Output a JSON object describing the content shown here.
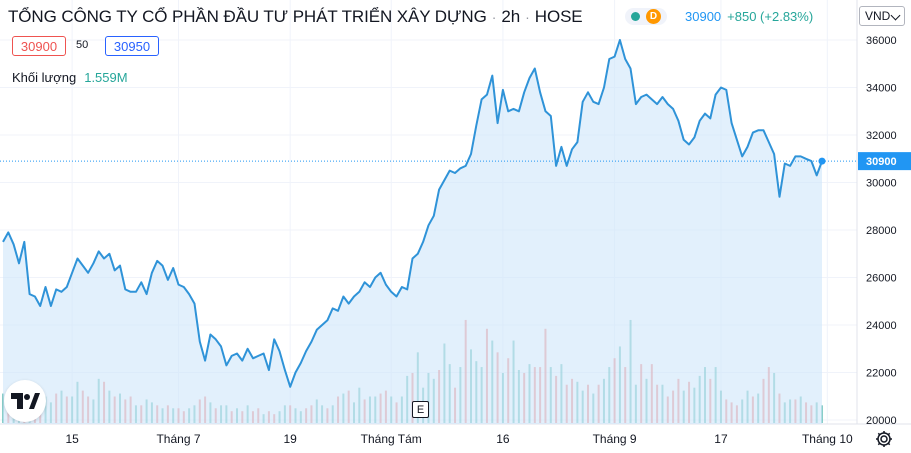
{
  "header": {
    "title": "TỔNG CÔNG TY CỔ PHẦN ĐẦU TƯ PHÁT TRIỂN XÂY DỰNG",
    "interval": "2h",
    "exchange": "HOSE",
    "separator": "·",
    "badge_letter": "D",
    "last_price": "30900",
    "change": "+850 (+2.83%)",
    "currency": "VND"
  },
  "quote_box": {
    "bid": "30900",
    "spread": "50",
    "ask": "30950"
  },
  "volume": {
    "label": "Khối lượng",
    "value": "1.559M"
  },
  "buttons": {
    "event_marker": "E"
  },
  "colors": {
    "line": "#2f93d8",
    "area": "#cfe6fa",
    "vol_up": "#26a69a",
    "vol_down": "#ef5350",
    "last_price_label": "#2196f3"
  },
  "icons": {
    "logo": "tradingview-logo",
    "settings": "gear-icon"
  },
  "chart_data": {
    "type": "area",
    "title": "",
    "xlabel": "",
    "ylabel": "",
    "ylim": [
      20000,
      36500
    ],
    "last_value": 30900,
    "last_value_label": "30900",
    "y_ticks": [
      20000,
      22000,
      24000,
      26000,
      28000,
      30000,
      32000,
      34000,
      36000
    ],
    "y_tick_labels": [
      "20000",
      "22000",
      "24000",
      "26000",
      "28000",
      "30000",
      "32000",
      "34000",
      "36000"
    ],
    "x_ticks": [
      {
        "label": "15",
        "at": 13
      },
      {
        "label": "Tháng 7",
        "at": 33
      },
      {
        "label": "19",
        "at": 54
      },
      {
        "label": "Tháng Tám",
        "at": 73
      },
      {
        "label": "16",
        "at": 94
      },
      {
        "label": "Tháng 9",
        "at": 115
      },
      {
        "label": "17",
        "at": 135
      },
      {
        "label": "Tháng 10",
        "at": 155
      }
    ],
    "grid": true,
    "series": [
      {
        "values": [
          27500,
          27900,
          27400,
          26600,
          27500,
          25300,
          25200,
          24800,
          25600,
          24800,
          25500,
          25400,
          25600,
          26200,
          26800,
          26500,
          26200,
          26600,
          27100,
          26800,
          27000,
          26300,
          26500,
          25500,
          25400,
          25400,
          25800,
          25300,
          26200,
          26700,
          26500,
          25900,
          26400,
          25700,
          25600,
          25300,
          24900,
          23300,
          22500,
          23600,
          23400,
          23100,
          22300,
          22700,
          22800,
          22500,
          23000,
          22600,
          22700,
          22800,
          22100,
          23400,
          22900,
          22100,
          21400,
          22000,
          22400,
          22900,
          23300,
          23800,
          24000,
          24200,
          24700,
          24600,
          25200,
          24900,
          25200,
          25400,
          25800,
          25600,
          26000,
          26200,
          25700,
          25400,
          25200,
          25600,
          25500,
          26800,
          27000,
          27500,
          28200,
          28600,
          29700,
          30100,
          30500,
          30400,
          30600,
          30700,
          31200,
          32400,
          33500,
          33700,
          34500,
          32500,
          33900,
          33000,
          33100,
          33000,
          33800,
          34400,
          34800,
          33800,
          33000,
          32800,
          30700,
          31500,
          30700,
          31400,
          31700,
          33400,
          33800,
          33400,
          33300,
          34000,
          35200,
          35300,
          36000,
          35200,
          34800,
          33300,
          33600,
          33700,
          33500,
          33300,
          33600,
          33300,
          33100,
          32600,
          31800,
          31600,
          31900,
          32600,
          32900,
          32700,
          33700,
          34000,
          33900,
          32500,
          31800,
          31100,
          31500,
          32100,
          32200,
          32200,
          31700,
          31200,
          29400,
          30800,
          30700,
          31100,
          31100,
          31000,
          30900,
          30300,
          30900
        ]
      }
    ],
    "volume_series": {
      "values": [
        1.0,
        0.8,
        0.8,
        1.2,
        1.4,
        0.6,
        0.6,
        1.0,
        0.9,
        0.7,
        1.0,
        1.1,
        0.9,
        0.9,
        1.4,
        1.1,
        0.9,
        0.8,
        1.5,
        1.4,
        1.1,
        0.9,
        1.0,
        0.8,
        0.9,
        0.6,
        0.6,
        0.8,
        0.7,
        0.6,
        0.5,
        0.6,
        0.5,
        0.5,
        0.4,
        0.5,
        0.6,
        0.8,
        0.9,
        0.7,
        0.5,
        0.6,
        0.6,
        0.4,
        0.5,
        0.4,
        0.6,
        0.4,
        0.5,
        0.3,
        0.4,
        0.3,
        0.4,
        0.6,
        0.6,
        0.5,
        0.4,
        0.5,
        0.6,
        0.8,
        0.6,
        0.5,
        0.6,
        0.9,
        1.0,
        1.1,
        0.7,
        1.2,
        0.8,
        0.9,
        0.9,
        1.0,
        1.1,
        0.9,
        0.7,
        0.9,
        1.6,
        1.7,
        2.4,
        1.2,
        1.7,
        1.5,
        1.8,
        2.7,
        2.0,
        1.2,
        1.9,
        3.5,
        2.5,
        2.1,
        1.9,
        3.2,
        2.8,
        2.4,
        1.7,
        2.2,
        2.8,
        1.8,
        1.7,
        2.0,
        1.9,
        1.9,
        3.2,
        1.9,
        1.6,
        2.0,
        1.3,
        1.5,
        1.4,
        1.1,
        1.3,
        1.0,
        1.3,
        1.5,
        1.9,
        2.2,
        2.6,
        1.9,
        3.5,
        1.3,
        2.0,
        1.5,
        2.0,
        1.3,
        1.3,
        0.9,
        1.1,
        1.5,
        1.1,
        1.4,
        1.2,
        1.6,
        1.9,
        1.5,
        1.9,
        1.1,
        0.8,
        0.7,
        0.6,
        0.8,
        1.1,
        0.9,
        1.0,
        1.5,
        1.9,
        1.7,
        1.0,
        0.7,
        0.8,
        0.8,
        0.9,
        0.7,
        0.6,
        0.7,
        0.6
      ],
      "up": [
        1,
        0,
        1,
        1,
        0,
        1,
        0,
        0,
        1,
        1,
        0,
        1,
        0,
        1,
        1,
        0,
        0,
        1,
        1,
        0,
        1,
        0,
        1,
        0,
        0,
        1,
        0,
        1,
        1,
        0,
        1,
        0,
        1,
        0,
        0,
        1,
        1,
        0,
        0,
        1,
        0,
        1,
        1,
        0,
        1,
        0,
        1,
        0,
        0,
        1,
        0,
        0,
        1,
        1,
        0,
        1,
        1,
        0,
        0,
        1,
        1,
        0,
        1,
        0,
        1,
        0,
        1,
        1,
        0,
        1,
        1,
        0,
        0,
        1,
        0,
        1,
        1,
        0,
        1,
        1,
        1,
        1,
        0,
        1,
        1,
        0,
        1,
        0,
        1,
        1,
        1,
        0,
        1,
        0,
        1,
        0,
        1,
        1,
        0,
        1,
        0,
        0,
        0,
        1,
        0,
        1,
        0,
        0,
        1,
        1,
        0,
        1,
        0,
        1,
        1,
        0,
        1,
        0,
        1,
        1,
        0,
        1,
        0,
        0,
        1,
        0,
        0,
        0,
        1,
        0,
        1,
        1,
        1,
        0,
        1,
        1,
        0,
        0,
        0,
        1,
        1,
        0,
        1,
        0,
        0,
        1,
        0,
        1,
        1,
        0,
        1,
        0,
        0,
        1,
        1
      ]
    }
  }
}
